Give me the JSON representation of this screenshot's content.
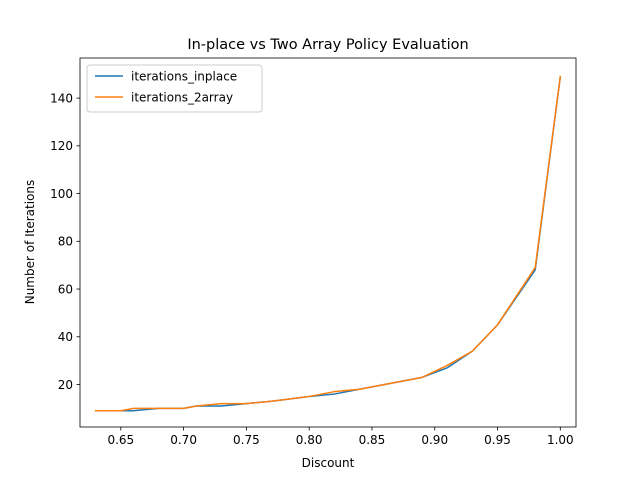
{
  "chart_data": {
    "type": "line",
    "title": "In-place vs Two Array Policy Evaluation",
    "xlabel": "Discount",
    "ylabel": "Number of Iterations",
    "xlim": [
      0.6175,
      1.0125
    ],
    "ylim": [
      2.2,
      156.8
    ],
    "xticks": [
      0.65,
      0.7,
      0.75,
      0.8,
      0.85,
      0.9,
      0.95,
      1.0
    ],
    "xtick_labels": [
      "0.65",
      "0.70",
      "0.75",
      "0.80",
      "0.85",
      "0.90",
      "0.95",
      "1.00"
    ],
    "yticks": [
      20,
      40,
      60,
      80,
      100,
      120,
      140
    ],
    "ytick_labels": [
      "20",
      "40",
      "60",
      "80",
      "100",
      "120",
      "140"
    ],
    "grid": false,
    "legend_position": "top-left",
    "x": [
      0.63,
      0.65,
      0.66,
      0.68,
      0.7,
      0.71,
      0.73,
      0.75,
      0.77,
      0.8,
      0.82,
      0.84,
      0.86,
      0.89,
      0.91,
      0.93,
      0.95,
      0.98,
      1.0
    ],
    "series": [
      {
        "name": "iterations_inplace",
        "color": "#1f77b4",
        "values": [
          9,
          9,
          9,
          10,
          10,
          11,
          11,
          12,
          13,
          15,
          16,
          18,
          20,
          23,
          27,
          34,
          45,
          68,
          149
        ]
      },
      {
        "name": "iterations_2array",
        "color": "#ff7f0e",
        "values": [
          9,
          9,
          10,
          10,
          10,
          11,
          12,
          12,
          13,
          15,
          17,
          18,
          20,
          23,
          28,
          34,
          45,
          69,
          149
        ]
      }
    ]
  }
}
